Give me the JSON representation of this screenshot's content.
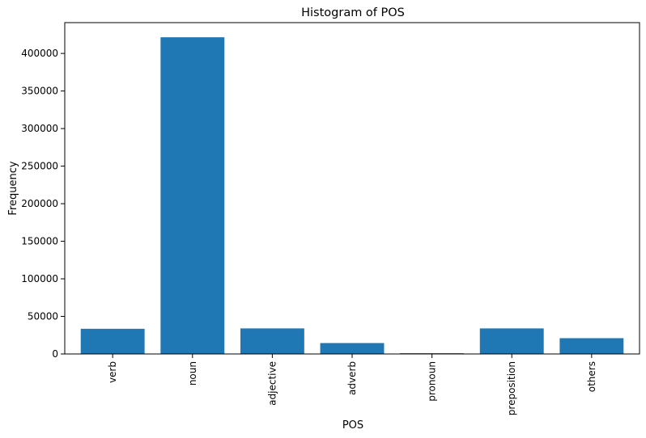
{
  "chart_data": {
    "type": "bar",
    "title": "Histogram of POS",
    "xlabel": "POS",
    "ylabel": "Frequency",
    "categories": [
      "verb",
      "noun",
      "adjective",
      "adverb",
      "pronoun",
      "preposition",
      "others"
    ],
    "values": [
      33500,
      421500,
      34000,
      14500,
      1000,
      34000,
      21000
    ],
    "ylim": [
      0,
      441000
    ],
    "yticks": [
      0,
      50000,
      100000,
      150000,
      200000,
      250000,
      300000,
      350000,
      400000
    ],
    "ytick_labels": [
      "0",
      "50000",
      "100000",
      "150000",
      "200000",
      "250000",
      "300000",
      "350000",
      "400000"
    ],
    "bar_color": "#1f77b4",
    "grid": false,
    "legend": false
  }
}
